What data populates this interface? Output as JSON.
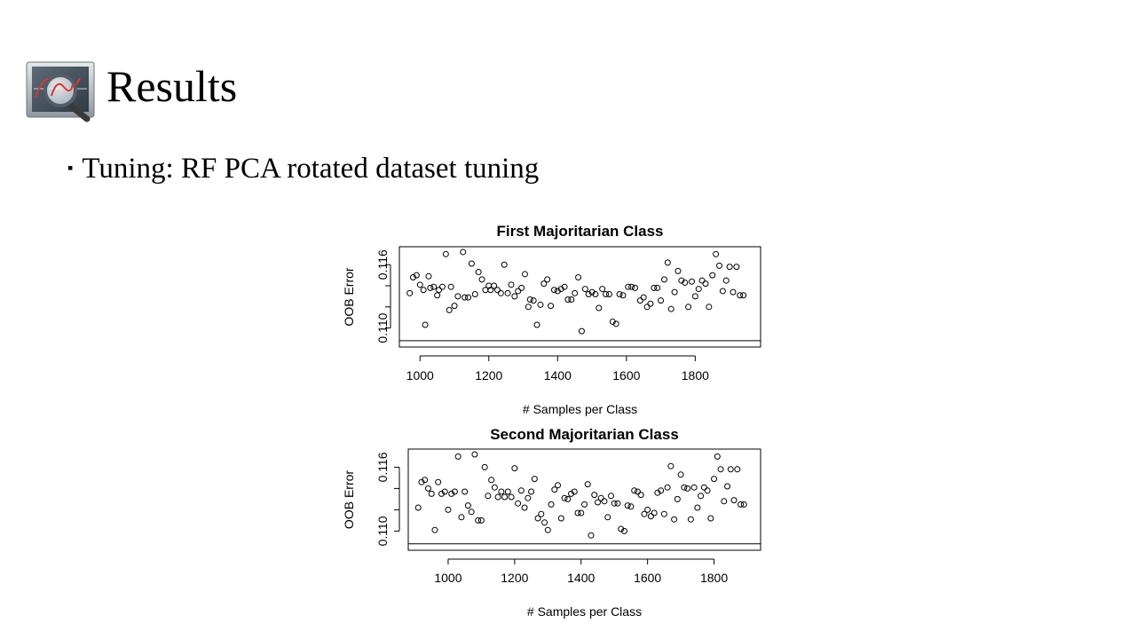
{
  "slide": {
    "title": "Results",
    "bullet_marker": "▪",
    "bullet_text": "Tuning: RF PCA rotated dataset tuning",
    "logo_icon": "magnifier-over-monitor-icon"
  },
  "chart_data": [
    {
      "type": "scatter",
      "title": "First Majoritarian Class",
      "xlabel": "# Samples per Class",
      "ylabel": "OOB Error",
      "xlim": [
        940,
        1990
      ],
      "ylim": [
        0.1082,
        0.1177
      ],
      "xticks": [
        1000,
        1200,
        1400,
        1600,
        1800
      ],
      "yticks": [
        0.11,
        0.112,
        0.114,
        0.116
      ],
      "ytick_labels": [
        "0.110",
        "",
        "",
        "0.116"
      ],
      "hline": 0.1088,
      "grid": false,
      "marker": "open-circle",
      "points": [
        [
          970,
          0.1133
        ],
        [
          980,
          0.1148
        ],
        [
          990,
          0.115
        ],
        [
          1000,
          0.1141
        ],
        [
          1010,
          0.1136
        ],
        [
          1015,
          0.1103
        ],
        [
          1025,
          0.1149
        ],
        [
          1030,
          0.1138
        ],
        [
          1040,
          0.1139
        ],
        [
          1050,
          0.1131
        ],
        [
          1055,
          0.1136
        ],
        [
          1065,
          0.1139
        ],
        [
          1075,
          0.117
        ],
        [
          1085,
          0.1117
        ],
        [
          1090,
          0.1139
        ],
        [
          1100,
          0.1121
        ],
        [
          1110,
          0.113
        ],
        [
          1125,
          0.1172
        ],
        [
          1130,
          0.1129
        ],
        [
          1140,
          0.1129
        ],
        [
          1150,
          0.1161
        ],
        [
          1160,
          0.1132
        ],
        [
          1170,
          0.1153
        ],
        [
          1180,
          0.1146
        ],
        [
          1190,
          0.1136
        ],
        [
          1200,
          0.114
        ],
        [
          1205,
          0.1136
        ],
        [
          1215,
          0.114
        ],
        [
          1225,
          0.1136
        ],
        [
          1235,
          0.1133
        ],
        [
          1245,
          0.116
        ],
        [
          1255,
          0.1133
        ],
        [
          1265,
          0.1141
        ],
        [
          1275,
          0.113
        ],
        [
          1285,
          0.1135
        ],
        [
          1295,
          0.1138
        ],
        [
          1305,
          0.1151
        ],
        [
          1315,
          0.112
        ],
        [
          1320,
          0.1127
        ],
        [
          1330,
          0.1126
        ],
        [
          1340,
          0.1103
        ],
        [
          1350,
          0.1122
        ],
        [
          1360,
          0.1142
        ],
        [
          1370,
          0.1146
        ],
        [
          1380,
          0.1121
        ],
        [
          1390,
          0.1136
        ],
        [
          1400,
          0.1135
        ],
        [
          1410,
          0.1137
        ],
        [
          1420,
          0.1139
        ],
        [
          1430,
          0.1127
        ],
        [
          1440,
          0.1127
        ],
        [
          1450,
          0.1133
        ],
        [
          1460,
          0.1148
        ],
        [
          1470,
          0.1097
        ],
        [
          1480,
          0.1137
        ],
        [
          1490,
          0.1132
        ],
        [
          1500,
          0.1134
        ],
        [
          1510,
          0.1132
        ],
        [
          1520,
          0.1119
        ],
        [
          1530,
          0.1137
        ],
        [
          1540,
          0.1132
        ],
        [
          1550,
          0.1132
        ],
        [
          1560,
          0.1106
        ],
        [
          1570,
          0.1104
        ],
        [
          1580,
          0.1132
        ],
        [
          1590,
          0.1131
        ],
        [
          1605,
          0.1139
        ],
        [
          1615,
          0.1139
        ],
        [
          1625,
          0.1138
        ],
        [
          1640,
          0.1126
        ],
        [
          1650,
          0.1129
        ],
        [
          1660,
          0.112
        ],
        [
          1670,
          0.1123
        ],
        [
          1680,
          0.1138
        ],
        [
          1690,
          0.1138
        ],
        [
          1700,
          0.1126
        ],
        [
          1710,
          0.1146
        ],
        [
          1720,
          0.1162
        ],
        [
          1730,
          0.1118
        ],
        [
          1740,
          0.1134
        ],
        [
          1750,
          0.1154
        ],
        [
          1760,
          0.1145
        ],
        [
          1770,
          0.1143
        ],
        [
          1780,
          0.112
        ],
        [
          1790,
          0.1144
        ],
        [
          1800,
          0.113
        ],
        [
          1810,
          0.1137
        ],
        [
          1820,
          0.1145
        ],
        [
          1830,
          0.1142
        ],
        [
          1840,
          0.112
        ],
        [
          1850,
          0.115
        ],
        [
          1860,
          0.117
        ],
        [
          1870,
          0.1159
        ],
        [
          1880,
          0.1135
        ],
        [
          1890,
          0.1145
        ],
        [
          1900,
          0.1158
        ],
        [
          1910,
          0.1134
        ],
        [
          1920,
          0.1158
        ],
        [
          1930,
          0.1131
        ],
        [
          1940,
          0.1131
        ]
      ]
    },
    {
      "type": "scatter",
      "title": "Second Majoritarian Class",
      "xlabel": "# Samples per Class",
      "ylabel": "OOB Error",
      "xlim": [
        880,
        1940
      ],
      "ylim": [
        0.1082,
        0.1177
      ],
      "xticks": [
        1000,
        1200,
        1400,
        1600,
        1800
      ],
      "yticks": [
        0.11,
        0.112,
        0.114,
        0.116
      ],
      "ytick_labels": [
        "0.110",
        "",
        "",
        "0.116"
      ],
      "hline": 0.1088,
      "grid": false,
      "marker": "open-circle",
      "points": [
        [
          910,
          0.1122
        ],
        [
          920,
          0.1146
        ],
        [
          930,
          0.1148
        ],
        [
          940,
          0.114
        ],
        [
          950,
          0.1135
        ],
        [
          960,
          0.1101
        ],
        [
          970,
          0.1146
        ],
        [
          980,
          0.1135
        ],
        [
          990,
          0.1137
        ],
        [
          1000,
          0.112
        ],
        [
          1010,
          0.1135
        ],
        [
          1020,
          0.1137
        ],
        [
          1030,
          0.117
        ],
        [
          1040,
          0.1113
        ],
        [
          1050,
          0.1137
        ],
        [
          1060,
          0.1124
        ],
        [
          1070,
          0.1118
        ],
        [
          1080,
          0.1172
        ],
        [
          1090,
          0.111
        ],
        [
          1100,
          0.111
        ],
        [
          1110,
          0.116
        ],
        [
          1120,
          0.1133
        ],
        [
          1130,
          0.1148
        ],
        [
          1140,
          0.1141
        ],
        [
          1150,
          0.1132
        ],
        [
          1160,
          0.1137
        ],
        [
          1170,
          0.1132
        ],
        [
          1180,
          0.1137
        ],
        [
          1190,
          0.1132
        ],
        [
          1200,
          0.1159
        ],
        [
          1210,
          0.1126
        ],
        [
          1220,
          0.1138
        ],
        [
          1230,
          0.1122
        ],
        [
          1240,
          0.1131
        ],
        [
          1250,
          0.1137
        ],
        [
          1260,
          0.1149
        ],
        [
          1270,
          0.1112
        ],
        [
          1280,
          0.1116
        ],
        [
          1290,
          0.1108
        ],
        [
          1300,
          0.1101
        ],
        [
          1310,
          0.1125
        ],
        [
          1320,
          0.1139
        ],
        [
          1330,
          0.1143
        ],
        [
          1340,
          0.1112
        ],
        [
          1350,
          0.1131
        ],
        [
          1360,
          0.113
        ],
        [
          1370,
          0.1135
        ],
        [
          1380,
          0.1137
        ],
        [
          1390,
          0.1117
        ],
        [
          1400,
          0.1117
        ],
        [
          1410,
          0.1125
        ],
        [
          1420,
          0.1144
        ],
        [
          1430,
          0.1096
        ],
        [
          1440,
          0.1134
        ],
        [
          1450,
          0.1127
        ],
        [
          1460,
          0.1131
        ],
        [
          1470,
          0.1128
        ],
        [
          1480,
          0.1113
        ],
        [
          1490,
          0.1133
        ],
        [
          1500,
          0.1126
        ],
        [
          1510,
          0.1126
        ],
        [
          1520,
          0.1102
        ],
        [
          1530,
          0.11
        ],
        [
          1540,
          0.1124
        ],
        [
          1550,
          0.1123
        ],
        [
          1560,
          0.1138
        ],
        [
          1570,
          0.1137
        ],
        [
          1580,
          0.1134
        ],
        [
          1590,
          0.1116
        ],
        [
          1600,
          0.112
        ],
        [
          1610,
          0.1114
        ],
        [
          1620,
          0.1117
        ],
        [
          1630,
          0.1136
        ],
        [
          1640,
          0.1138
        ],
        [
          1650,
          0.1116
        ],
        [
          1660,
          0.1141
        ],
        [
          1670,
          0.1161
        ],
        [
          1680,
          0.1111
        ],
        [
          1690,
          0.113
        ],
        [
          1700,
          0.1153
        ],
        [
          1710,
          0.1141
        ],
        [
          1720,
          0.114
        ],
        [
          1730,
          0.1111
        ],
        [
          1740,
          0.1141
        ],
        [
          1750,
          0.1122
        ],
        [
          1760,
          0.1133
        ],
        [
          1770,
          0.1141
        ],
        [
          1780,
          0.1138
        ],
        [
          1790,
          0.1112
        ],
        [
          1800,
          0.1149
        ],
        [
          1810,
          0.117
        ],
        [
          1820,
          0.1158
        ],
        [
          1830,
          0.1128
        ],
        [
          1840,
          0.1142
        ],
        [
          1850,
          0.1158
        ],
        [
          1860,
          0.1129
        ],
        [
          1870,
          0.1158
        ],
        [
          1880,
          0.1125
        ],
        [
          1890,
          0.1125
        ]
      ]
    }
  ]
}
